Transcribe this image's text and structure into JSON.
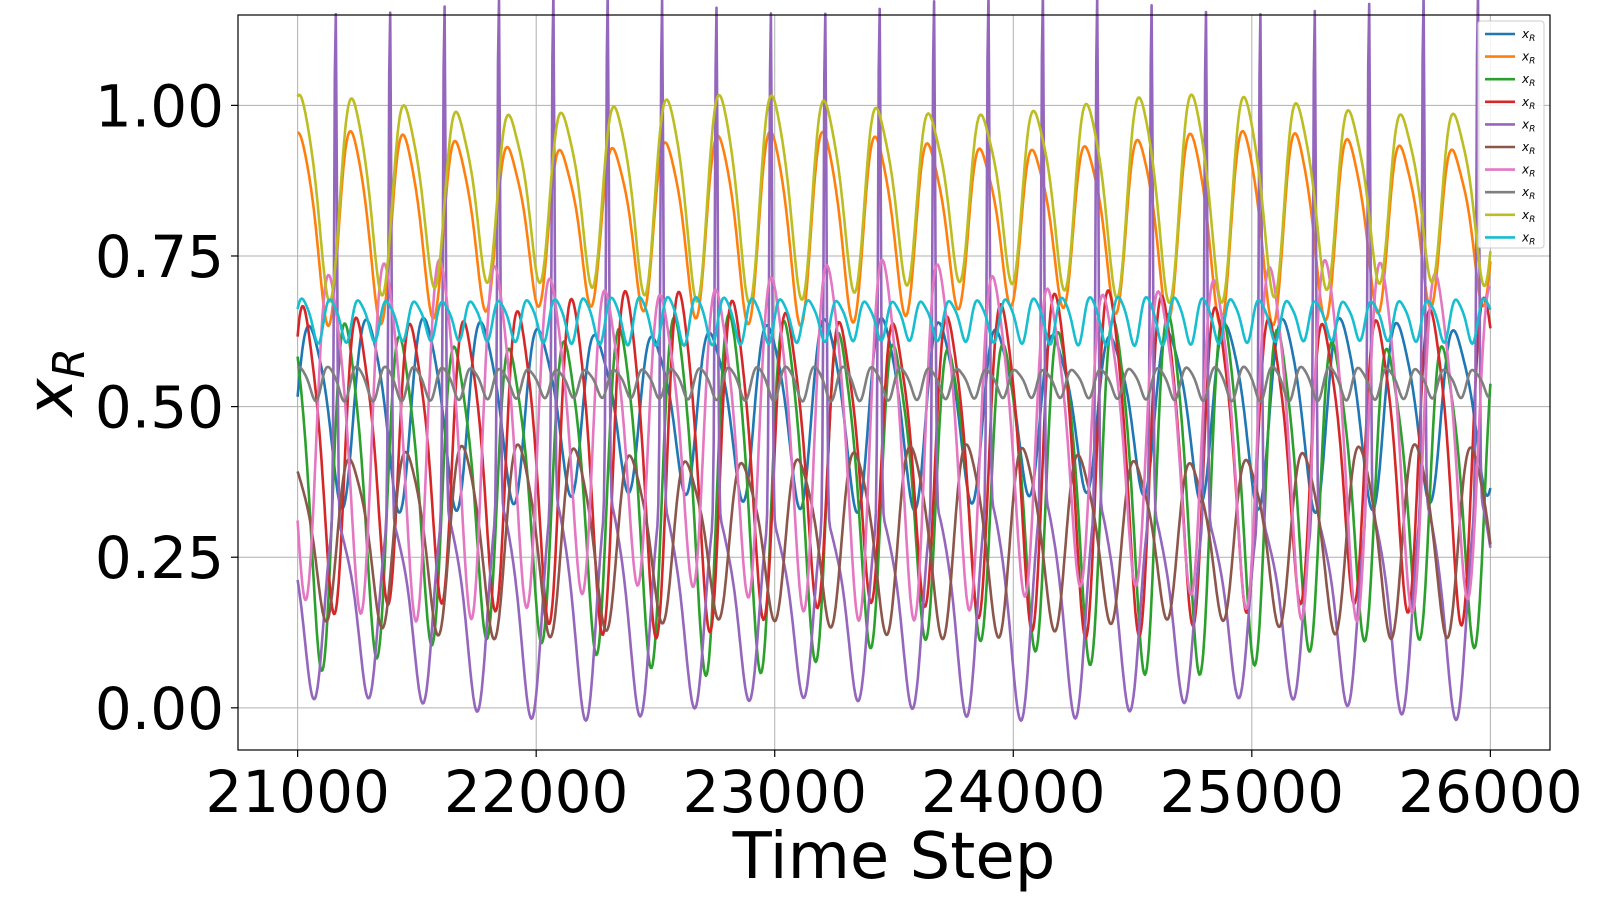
{
  "chart_data": {
    "type": "line",
    "title": "",
    "xlabel": "Time Step",
    "ylabel": {
      "main": "x",
      "sub": "R"
    },
    "xlim": [
      20750,
      26250
    ],
    "ylim": [
      -0.07,
      1.15
    ],
    "xticks": [
      21000,
      22000,
      23000,
      24000,
      25000,
      26000
    ],
    "xtick_labels": [
      "21000",
      "22000",
      "23000",
      "24000",
      "25000",
      "26000"
    ],
    "yticks": [
      0.0,
      0.25,
      0.5,
      0.75,
      1.0
    ],
    "ytick_labels": [
      "0.00",
      "0.25",
      "0.50",
      "0.75",
      "1.00"
    ],
    "grid": true,
    "legend_position": "top-right",
    "x_range": [
      21000,
      26000
    ],
    "series": [
      {
        "name": "x_R",
        "legend": {
          "main": "x",
          "sub": "R"
        },
        "color": "#1f77b4",
        "mean": 0.5,
        "amp": 0.14,
        "period": 240,
        "phase": 0.0,
        "spike": 0
      },
      {
        "name": "x_R",
        "legend": {
          "main": "x",
          "sub": "R"
        },
        "color": "#ff7f0e",
        "mean": 0.81,
        "amp": 0.14,
        "period": 220,
        "phase": 1.2,
        "spike": 0
      },
      {
        "name": "x_R",
        "legend": {
          "main": "x",
          "sub": "R"
        },
        "color": "#2ca02c",
        "mean": 0.38,
        "amp": 0.26,
        "period": 230,
        "phase": 2.1,
        "spike": 0
      },
      {
        "name": "x_R",
        "legend": {
          "main": "x",
          "sub": "R"
        },
        "color": "#d62728",
        "mean": 0.43,
        "amp": 0.25,
        "period": 225,
        "phase": 0.6,
        "spike": 0
      },
      {
        "name": "x_R",
        "legend": {
          "main": "x",
          "sub": "R"
        },
        "color": "#9467bd",
        "mean": 0.18,
        "amp": 0.16,
        "period": 228,
        "phase": 3.0,
        "spike": 0.85
      },
      {
        "name": "x_R",
        "legend": {
          "main": "x",
          "sub": "R"
        },
        "color": "#8c564b",
        "mean": 0.29,
        "amp": 0.14,
        "period": 235,
        "phase": 1.7,
        "spike": 0
      },
      {
        "name": "x_R",
        "legend": {
          "main": "x",
          "sub": "R"
        },
        "color": "#e377c2",
        "mean": 0.47,
        "amp": 0.26,
        "period": 232,
        "phase": 4.0,
        "spike": 0
      },
      {
        "name": "x_R",
        "legend": {
          "main": "x",
          "sub": "R"
        },
        "color": "#7f7f7f",
        "mean": 0.54,
        "amp": 0.025,
        "period": 120,
        "phase": 0.9,
        "spike": 0
      },
      {
        "name": "x_R",
        "legend": {
          "main": "x",
          "sub": "R"
        },
        "color": "#bcbd22",
        "mean": 0.86,
        "amp": 0.15,
        "period": 220,
        "phase": 1.05,
        "spike": 0
      },
      {
        "name": "x_R",
        "legend": {
          "main": "x",
          "sub": "R"
        },
        "color": "#17becf",
        "mean": 0.645,
        "amp": 0.035,
        "period": 118,
        "phase": 0.3,
        "spike": 0
      }
    ]
  }
}
